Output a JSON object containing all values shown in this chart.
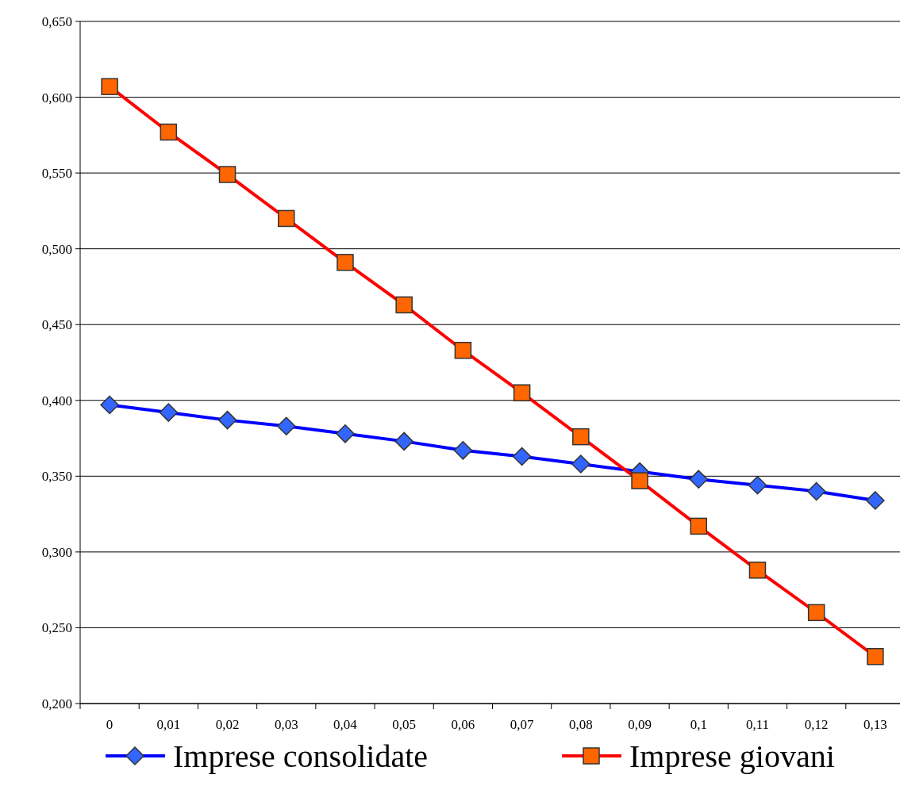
{
  "chart_data": {
    "type": "line",
    "categories": [
      "0",
      "0,01",
      "0,02",
      "0,03",
      "0,04",
      "0,05",
      "0,06",
      "0,07",
      "0,08",
      "0,09",
      "0,1",
      "0,11",
      "0,12",
      "0,13"
    ],
    "series": [
      {
        "name": "Imprese consolidate",
        "color": "#0000ff",
        "marker": "diamond",
        "values": [
          0.397,
          0.392,
          0.387,
          0.383,
          0.378,
          0.373,
          0.367,
          0.363,
          0.358,
          0.353,
          0.348,
          0.344,
          0.34,
          0.334
        ]
      },
      {
        "name": "Imprese giovani",
        "color": "#ff0000",
        "marker": "square",
        "values": [
          0.607,
          0.577,
          0.549,
          0.52,
          0.491,
          0.463,
          0.433,
          0.405,
          0.376,
          0.347,
          0.317,
          0.288,
          0.26,
          0.231
        ]
      }
    ],
    "ylim": [
      0.2,
      0.65
    ],
    "yticks": [
      {
        "value": 0.2,
        "label": "0,200"
      },
      {
        "value": 0.25,
        "label": "0,250"
      },
      {
        "value": 0.3,
        "label": "0,300"
      },
      {
        "value": 0.35,
        "label": "0,350"
      },
      {
        "value": 0.4,
        "label": "0,400"
      },
      {
        "value": 0.45,
        "label": "0,450"
      },
      {
        "value": 0.5,
        "label": "0,500"
      },
      {
        "value": 0.55,
        "label": "0,550"
      },
      {
        "value": 0.6,
        "label": "0,600"
      },
      {
        "value": 0.65,
        "label": "0,650"
      }
    ],
    "grid": "y",
    "legend": "bottom",
    "line_style": "solid"
  }
}
